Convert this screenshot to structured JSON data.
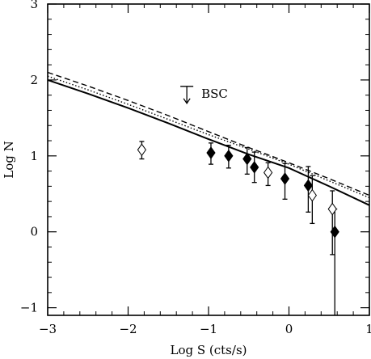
{
  "chart_data": {
    "type": "scatter",
    "title": "",
    "xlabel": "Log S (cts/s)",
    "ylabel": "Log N",
    "xlim": [
      -3,
      1
    ],
    "ylim": [
      -1.1,
      3
    ],
    "x_ticks": [
      -3,
      -2,
      -1,
      0,
      1
    ],
    "x_tick_labels": [
      "−3",
      "−2",
      "−1",
      "0",
      "1"
    ],
    "y_ticks": [
      -1,
      0,
      1,
      2,
      3
    ],
    "y_tick_labels": [
      "−1",
      "0",
      "1",
      "2",
      "3"
    ],
    "grid": false,
    "curves": [
      {
        "style": "dashed",
        "x": [
          -3,
          -2.5,
          -2,
          -1.5,
          -1,
          -0.5,
          0,
          0.5,
          1
        ],
        "y": [
          2.1,
          1.92,
          1.73,
          1.53,
          1.32,
          1.11,
          0.91,
          0.7,
          0.48
        ]
      },
      {
        "style": "dotted",
        "x": [
          -3,
          -2.5,
          -2,
          -1.5,
          -1,
          -0.5,
          0,
          0.5,
          1
        ],
        "y": [
          2.05,
          1.87,
          1.68,
          1.48,
          1.28,
          1.09,
          0.89,
          0.67,
          0.45
        ]
      },
      {
        "style": "solid",
        "x": [
          -3,
          -2.5,
          -2,
          -1.5,
          -1,
          -0.5,
          0,
          0.5,
          1
        ],
        "y": [
          2.0,
          1.82,
          1.63,
          1.43,
          1.22,
          1.02,
          0.84,
          0.6,
          0.35
        ]
      }
    ],
    "series": [
      {
        "marker": "filled-diamond",
        "points": [
          {
            "x": -0.97,
            "y": 1.04,
            "yerr_low": 0.15,
            "yerr_high": 0.13
          },
          {
            "x": -0.75,
            "y": 1.0,
            "yerr_low": 0.16,
            "yerr_high": 0.14
          },
          {
            "x": -0.52,
            "y": 0.96,
            "yerr_low": 0.2,
            "yerr_high": 0.15
          },
          {
            "x": -0.43,
            "y": 0.85,
            "yerr_low": 0.2,
            "yerr_high": 0.2
          },
          {
            "x": -0.05,
            "y": 0.7,
            "yerr_low": 0.27,
            "yerr_high": 0.2
          },
          {
            "x": 0.24,
            "y": 0.61,
            "yerr_low": 0.35,
            "yerr_high": 0.25
          },
          {
            "x": 0.57,
            "y": 0.0,
            "yerr_low": 1.1,
            "yerr_high": 0.3
          }
        ]
      },
      {
        "marker": "open-diamond",
        "points": [
          {
            "x": -1.83,
            "y": 1.08,
            "yerr_low": 0.12,
            "yerr_high": 0.11
          },
          {
            "x": -0.26,
            "y": 0.78,
            "yerr_low": 0.17,
            "yerr_high": 0.13
          },
          {
            "x": 0.29,
            "y": 0.48,
            "yerr_low": 0.37,
            "yerr_high": 0.26
          },
          {
            "x": 0.54,
            "y": 0.3,
            "yerr_low": 0.6,
            "yerr_high": 0.24
          }
        ]
      }
    ],
    "annotation": {
      "text": "BSC",
      "x": -1.27,
      "y": 1.82,
      "marker": "upper-limit-arrow"
    }
  }
}
